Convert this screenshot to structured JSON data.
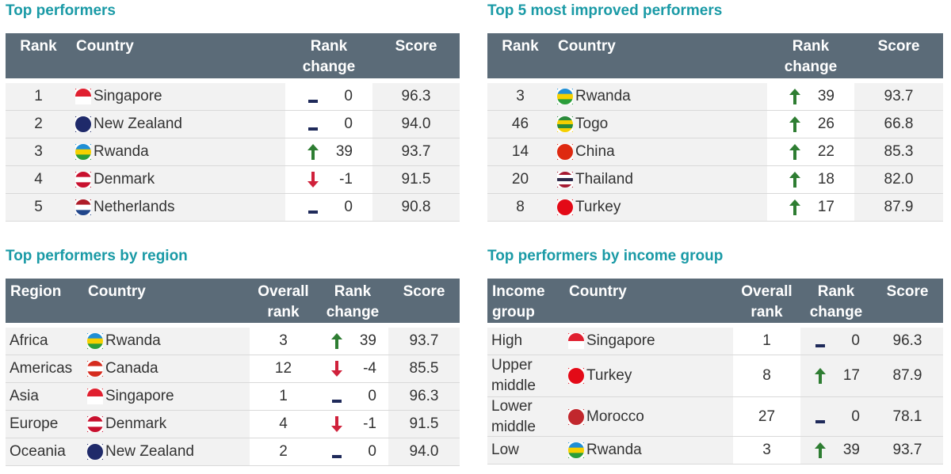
{
  "tables": [
    {
      "title": "Top performers",
      "headers": [
        "Rank",
        "Country",
        "Rank change",
        "Score"
      ],
      "rows": [
        [
          "1",
          "Singapore",
          "0",
          "96.3"
        ],
        [
          "2",
          "New Zealand",
          "0",
          "94.0"
        ],
        [
          "3",
          "Rwanda",
          "39",
          "93.7"
        ],
        [
          "4",
          "Denmark",
          "-1",
          "91.5"
        ],
        [
          "5",
          "Netherlands",
          "0",
          "90.8"
        ]
      ]
    },
    {
      "title": "Top 5 most improved performers",
      "headers": [
        "Rank",
        "Country",
        "Rank change",
        "Score"
      ],
      "rows": [
        [
          "3",
          "Rwanda",
          "39",
          "93.7"
        ],
        [
          "46",
          "Togo",
          "26",
          "66.8"
        ],
        [
          "14",
          "China",
          "22",
          "85.3"
        ],
        [
          "20",
          "Thailand",
          "18",
          "82.0"
        ],
        [
          "8",
          "Turkey",
          "17",
          "87.9"
        ]
      ]
    },
    {
      "title": "Top performers by region",
      "headers": [
        "Region",
        "Country",
        "Overall rank",
        "Rank change",
        "Score"
      ],
      "rows": [
        [
          "Africa",
          "Rwanda",
          "3",
          "39",
          "93.7"
        ],
        [
          "Americas",
          "Canada",
          "12",
          "-4",
          "85.5"
        ],
        [
          "Asia",
          "Singapore",
          "1",
          "0",
          "96.3"
        ],
        [
          "Europe",
          "Denmark",
          "4",
          "-1",
          "91.5"
        ],
        [
          "Oceania",
          "New Zealand",
          "2",
          "0",
          "94.0"
        ]
      ]
    },
    {
      "title": "Top performers by income group",
      "headers": [
        "Income group",
        "Country",
        "Overall rank",
        "Rank change",
        "Score"
      ],
      "rows": [
        [
          "High",
          "Singapore",
          "1",
          "0",
          "96.3"
        ],
        [
          "Upper middle",
          "Turkey",
          "8",
          "17",
          "87.9"
        ],
        [
          "Lower middle",
          "Morocco",
          "27",
          "0",
          "78.1"
        ],
        [
          "Low",
          "Rwanda",
          "3",
          "39",
          "93.7"
        ]
      ]
    }
  ]
}
